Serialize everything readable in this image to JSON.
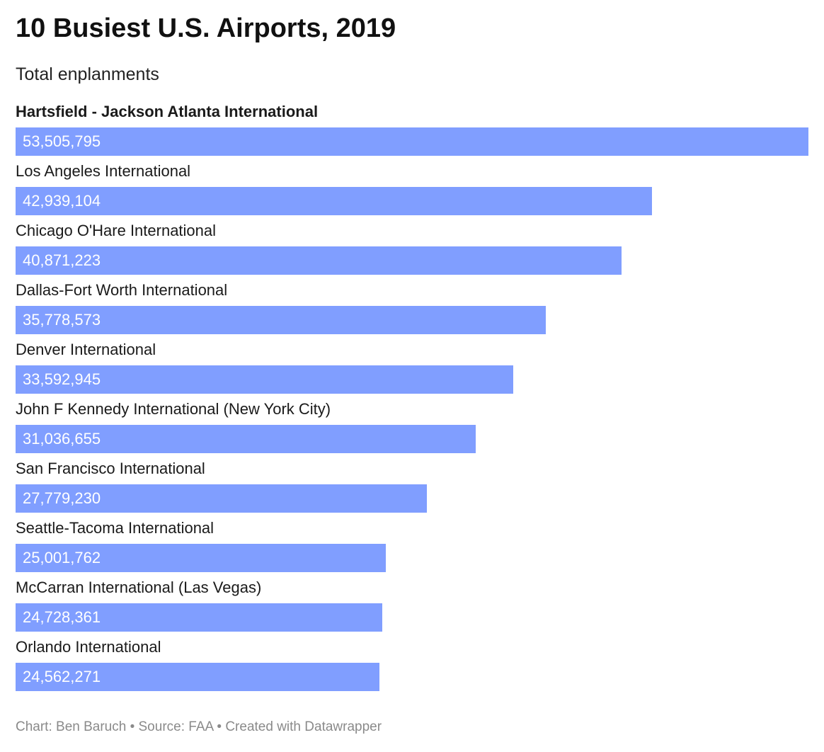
{
  "chart_data": {
    "type": "bar",
    "orientation": "horizontal",
    "title": "10 Busiest U.S. Airports, 2019",
    "subtitle": "Total enplanments",
    "categories": [
      "Hartsfield - Jackson Atlanta International",
      "Los Angeles International",
      "Chicago O'Hare International",
      "Dallas-Fort Worth International",
      "Denver International",
      "John F Kennedy International (New York City)",
      "San Francisco International",
      "Seattle-Tacoma International",
      "McCarran International (Las Vegas)",
      "Orlando International"
    ],
    "values": [
      53505795,
      42939104,
      40871223,
      35778573,
      33592945,
      31036655,
      27779230,
      25001762,
      24728361,
      24562271
    ],
    "value_labels": [
      "53,505,795",
      "42,939,104",
      "40,871,223",
      "35,778,573",
      "33,592,945",
      "31,036,655",
      "27,779,230",
      "25,001,762",
      "24,728,361",
      "24,562,271"
    ],
    "highlighted": [
      true,
      false,
      false,
      false,
      false,
      false,
      false,
      false,
      false,
      false
    ],
    "xlim": [
      0,
      53505795
    ],
    "xlabel": "",
    "ylabel": "",
    "grid": false,
    "legend": "none",
    "bar_color": "#809eff",
    "value_label_color": "#ffffff"
  },
  "footer": {
    "text": "Chart: Ben Baruch • Source: FAA • Created with Datawrapper"
  }
}
